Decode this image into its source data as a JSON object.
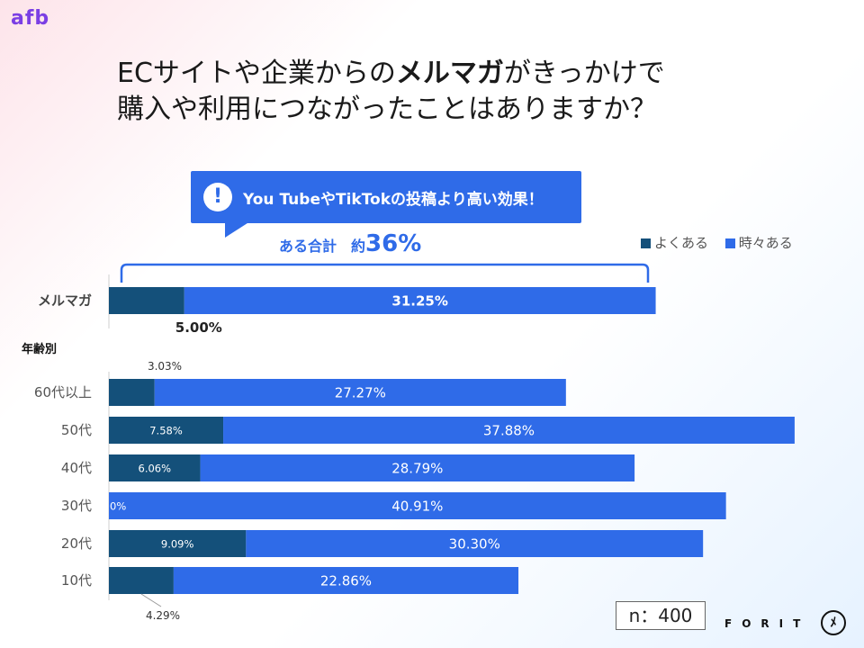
{
  "header": {
    "brand": "afb",
    "title_line1_pre": "ECサイトや企業からの",
    "title_line1_bold": "メルマガ",
    "title_line1_post": "がきっかけで",
    "title_line2": "購入や利用につながったことはありますか？"
  },
  "callout": {
    "icon": "exclamation-icon",
    "icon_glyph": "!",
    "text": "You TubeやTikTokの投稿より高い効果！"
  },
  "summary": {
    "label": "ある合計　約",
    "value": "36%"
  },
  "footer": {
    "n_label": "n：400",
    "company": "FORIT",
    "logo_glyph": "ﾒ"
  },
  "chart_data": {
    "type": "bar",
    "orientation": "horizontal",
    "stacked": true,
    "legend": [
      "よくある",
      "時々ある"
    ],
    "legend_placement": "top-right",
    "colors": {
      "often": "#14507a",
      "sometimes": "#2f6be8"
    },
    "xlim": [
      0,
      100
    ],
    "group_label": "年齢別",
    "rows": [
      {
        "category": "メルマガ",
        "often": 5.0,
        "sometimes": 31.25,
        "often_label": "5.00%",
        "sometimes_label": "31.25%"
      },
      {
        "category": "60代以上",
        "often": 3.03,
        "sometimes": 27.27,
        "often_label": "3.03%",
        "sometimes_label": "27.27%"
      },
      {
        "category": "50代",
        "often": 7.58,
        "sometimes": 37.88,
        "often_label": "7.58%",
        "sometimes_label": "37.88%"
      },
      {
        "category": "40代",
        "often": 6.06,
        "sometimes": 28.79,
        "often_label": "6.06%",
        "sometimes_label": "28.79%"
      },
      {
        "category": "30代",
        "often": 0,
        "sometimes": 40.91,
        "often_label": "0%",
        "sometimes_label": "40.91%"
      },
      {
        "category": "20代",
        "often": 9.09,
        "sometimes": 30.3,
        "often_label": "9.09%",
        "sometimes_label": "30.30%"
      },
      {
        "category": "10代",
        "often": 4.29,
        "sometimes": 22.86,
        "often_label": "4.29%",
        "sometimes_label": "22.86%"
      }
    ]
  }
}
